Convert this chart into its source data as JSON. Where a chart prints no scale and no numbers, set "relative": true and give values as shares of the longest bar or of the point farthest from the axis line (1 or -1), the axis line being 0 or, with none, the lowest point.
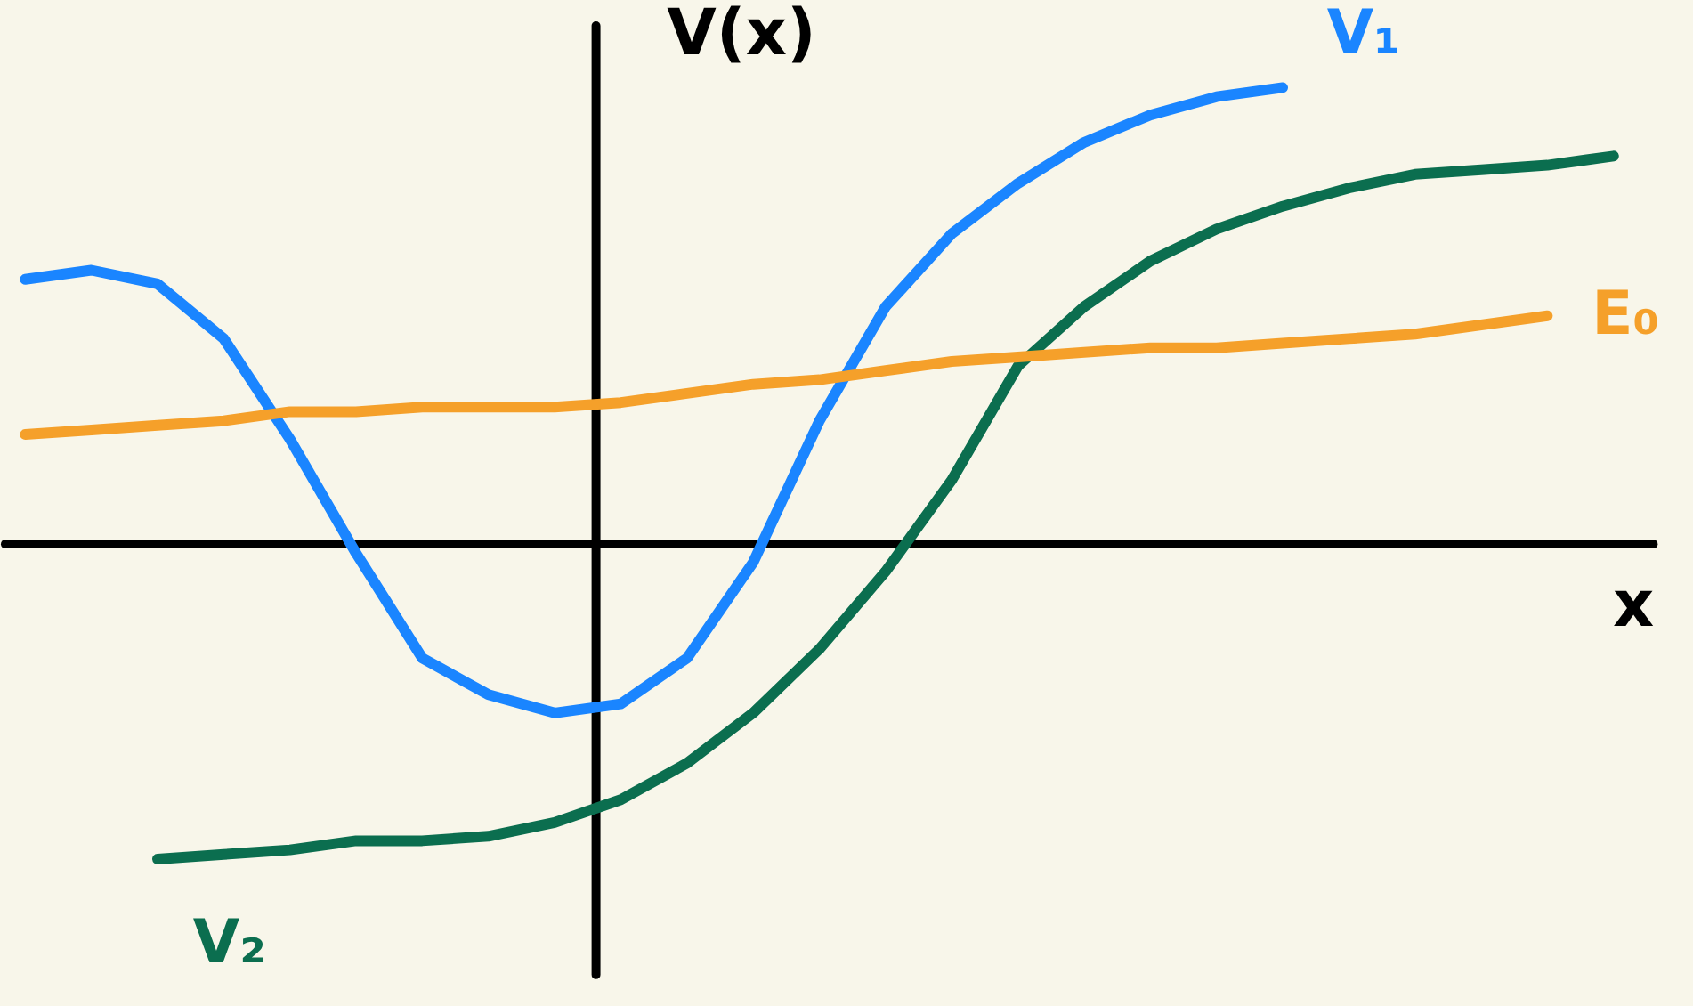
{
  "chart_data": {
    "type": "line",
    "relative": true,
    "xlabel": "x",
    "ylabel": "V(x)",
    "categories": [
      null,
      null,
      null,
      null,
      null,
      null,
      null,
      null,
      null,
      null,
      null,
      null,
      null,
      null,
      null,
      null,
      null,
      null,
      null,
      null,
      null,
      null,
      null,
      null,
      null
    ],
    "series": [
      {
        "name": "V₁",
        "color": "#1a85ff",
        "values": [
          0.58,
          0.6,
          0.57,
          0.45,
          0.23,
          -0.02,
          -0.25,
          -0.33,
          -0.37,
          -0.35,
          -0.25,
          -0.04,
          0.27,
          0.52,
          0.68,
          0.79,
          0.88,
          0.94,
          0.98,
          1.0,
          null,
          null,
          null,
          null,
          null
        ]
      },
      {
        "name": "V₂",
        "color": "#0b6e4f",
        "values": [
          null,
          null,
          -0.69,
          -0.68,
          -0.67,
          -0.65,
          -0.65,
          -0.64,
          -0.61,
          -0.56,
          -0.48,
          -0.37,
          -0.23,
          -0.06,
          0.14,
          0.39,
          0.52,
          0.62,
          0.69,
          0.74,
          0.78,
          0.81,
          0.82,
          0.83,
          0.85
        ]
      },
      {
        "name": "E₀",
        "color": "#f5a02a",
        "values": [
          0.24,
          0.25,
          0.26,
          0.27,
          0.29,
          0.29,
          0.3,
          0.3,
          0.3,
          0.31,
          0.33,
          0.35,
          0.36,
          0.38,
          0.4,
          0.41,
          0.42,
          0.43,
          0.43,
          0.44,
          0.45,
          0.46,
          0.48,
          0.5,
          null
        ]
      }
    ],
    "ref_lines": [
      {
        "axis": "y",
        "value": 0,
        "color": "#000000"
      }
    ],
    "line_style": "solid",
    "marker": "none"
  }
}
